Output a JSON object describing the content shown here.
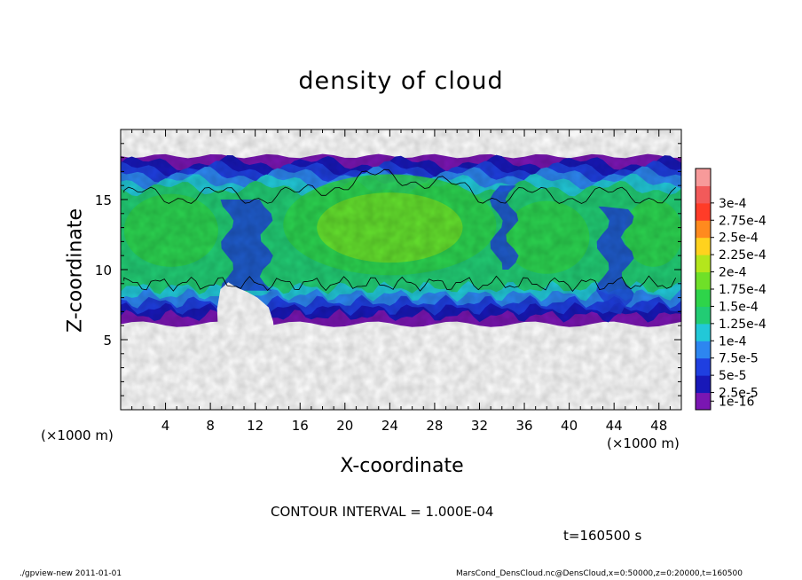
{
  "chart_data": {
    "type": "heatmap",
    "title": "density of cloud",
    "xlabel": "X-coordinate",
    "ylabel": "Z-coordinate",
    "x_unit_label": "(×1000 m)",
    "xlim": [
      0,
      50
    ],
    "ylim": [
      0,
      20
    ],
    "x_ticks": [
      "4",
      "8",
      "12",
      "16",
      "20",
      "24",
      "28",
      "32",
      "36",
      "40",
      "44",
      "48"
    ],
    "y_ticks": [
      "5",
      "10",
      "15"
    ],
    "colorbar": {
      "labels": [
        "1e-16",
        "2.5e-5",
        "5e-5",
        "7.5e-5",
        "1e-4",
        "1.25e-4",
        "1.5e-4",
        "1.75e-4",
        "2e-4",
        "2.25e-4",
        "2.5e-4",
        "2.75e-4",
        "3e-4"
      ],
      "colors": [
        "#7a16b2",
        "#1818b8",
        "#1f3fe0",
        "#2d86f0",
        "#22c8d8",
        "#22cc74",
        "#2ed44a",
        "#6fe028",
        "#b4e61c",
        "#ffd21e",
        "#ff8a1e",
        "#ff3c28",
        "#f25a5a",
        "#f79a9a"
      ]
    },
    "annotations": {
      "contour_interval": "CONTOUR INTERVAL = 1.000E-04",
      "time": "t=160500 s"
    },
    "data_description": "Cloud layer spans roughly z=6 to z=18 (×1000 m) across x=0 to 50; interior values around 1.0e-4 to 1.4e-4 (green), lower boundary bands blue/purple, gap below z≈9 near x=8–13."
  },
  "footer": {
    "left": "./gpview-new   2011-01-01",
    "right": "MarsCond_DensCloud.nc@DensCloud,x=0:50000,z=0:20000,t=160500"
  }
}
